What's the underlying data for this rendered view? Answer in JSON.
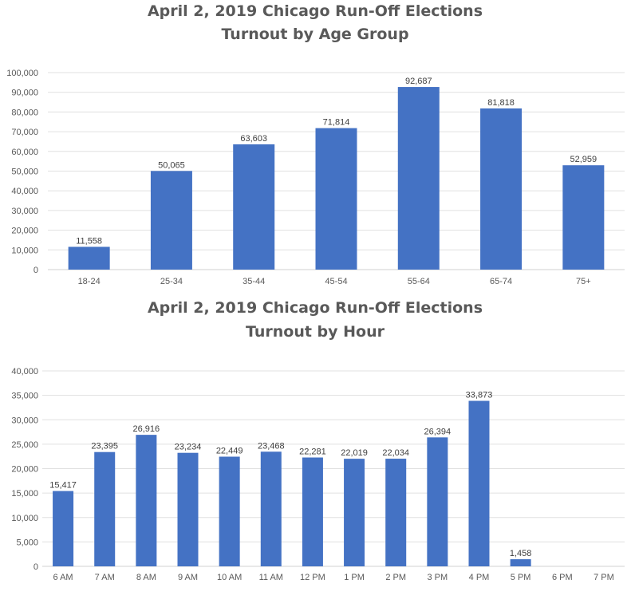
{
  "chart_data": [
    {
      "type": "bar",
      "title": "April 2, 2019 Chicago Run-Off Elections",
      "subtitle": "Turnout by Age Group",
      "categories": [
        "18-24",
        "25-34",
        "35-44",
        "45-54",
        "55-64",
        "65-74",
        "75+"
      ],
      "values": [
        11558,
        50065,
        63603,
        71814,
        92687,
        81818,
        52959
      ],
      "value_labels": [
        "11,558",
        "50,065",
        "63,603",
        "71,814",
        "92,687",
        "81,818",
        "52,959"
      ],
      "ylim": [
        0,
        100000
      ],
      "yticks": [
        0,
        10000,
        20000,
        30000,
        40000,
        50000,
        60000,
        70000,
        80000,
        90000,
        100000
      ],
      "ytick_labels": [
        "0",
        "10,000",
        "20,000",
        "30,000",
        "40,000",
        "50,000",
        "60,000",
        "70,000",
        "80,000",
        "90,000",
        "100,000"
      ],
      "grid": true,
      "bar_color": "#4472C4"
    },
    {
      "type": "bar",
      "title": "April 2, 2019 Chicago Run-Off Elections",
      "subtitle": "Turnout by Hour",
      "categories": [
        "6 AM",
        "7 AM",
        "8 AM",
        "9 AM",
        "10 AM",
        "11 AM",
        "12 PM",
        "1 PM",
        "2 PM",
        "3 PM",
        "4 PM",
        "5 PM",
        "6 PM",
        "7 PM"
      ],
      "values": [
        15417,
        23395,
        26916,
        23234,
        22449,
        23468,
        22281,
        22019,
        22034,
        26394,
        33873,
        1458,
        0,
        0
      ],
      "value_labels": [
        "15,417",
        "23,395",
        "26,916",
        "23,234",
        "22,449",
        "23,468",
        "22,281",
        "22,019",
        "22,034",
        "26,394",
        "33,873",
        "1,458",
        "",
        ""
      ],
      "ylim": [
        0,
        40000
      ],
      "yticks": [
        0,
        5000,
        10000,
        15000,
        20000,
        25000,
        30000,
        35000,
        40000
      ],
      "ytick_labels": [
        "0",
        "5,000",
        "10,000",
        "15,000",
        "20,000",
        "25,000",
        "30,000",
        "35,000",
        "40,000"
      ],
      "grid": true,
      "bar_color": "#4472C4"
    }
  ]
}
